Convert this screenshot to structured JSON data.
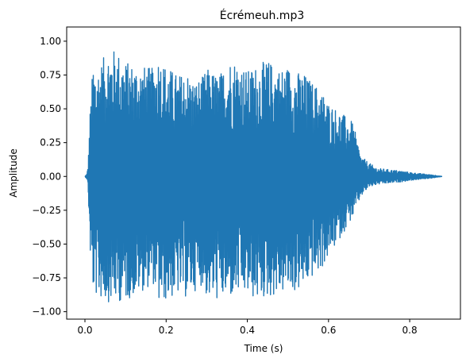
{
  "chart_data": {
    "type": "line",
    "title": "Écrémeuh.mp3",
    "xlabel": "Time (s)",
    "ylabel": "Amplitude",
    "xlim": [
      -0.045,
      0.925
    ],
    "ylim": [
      -1.055,
      1.105
    ],
    "xticks": [
      0.0,
      0.2,
      0.4,
      0.6,
      0.8
    ],
    "xtick_labels": [
      "0.0",
      "0.2",
      "0.4",
      "0.6",
      "0.8"
    ],
    "yticks": [
      -1.0,
      -0.75,
      -0.5,
      -0.25,
      0.0,
      0.25,
      0.5,
      0.75,
      1.0
    ],
    "ytick_labels": [
      "−1.00",
      "−0.75",
      "−0.50",
      "−0.25",
      "0.00",
      "0.25",
      "0.50",
      "0.75",
      "1.00"
    ],
    "grid": false,
    "series": [
      {
        "color": "#1f77b4",
        "x_start": 0.0,
        "x_end": 0.88,
        "envelope": {
          "x": [
            0.0,
            0.005,
            0.008,
            0.012,
            0.02,
            0.03,
            0.05,
            0.06,
            0.08,
            0.1,
            0.14,
            0.17,
            0.18,
            0.2,
            0.23,
            0.25,
            0.27,
            0.29,
            0.3,
            0.33,
            0.36,
            0.38,
            0.4,
            0.42,
            0.45,
            0.48,
            0.5,
            0.52,
            0.54,
            0.56,
            0.58,
            0.6,
            0.62,
            0.64,
            0.66,
            0.68,
            0.7,
            0.72,
            0.75,
            0.78,
            0.8,
            0.83,
            0.86,
            0.88
          ],
          "upper": [
            0.0,
            0.02,
            0.1,
            0.45,
            0.85,
            0.8,
            0.9,
            0.95,
            0.93,
            0.85,
            0.82,
            0.8,
            0.9,
            0.82,
            0.75,
            0.78,
            0.7,
            0.74,
            0.8,
            0.75,
            0.88,
            0.85,
            0.78,
            0.82,
            0.86,
            0.8,
            0.82,
            0.78,
            0.76,
            0.7,
            0.65,
            0.55,
            0.5,
            0.45,
            0.4,
            0.15,
            0.1,
            0.06,
            0.05,
            0.04,
            0.03,
            0.02,
            0.01,
            0.0
          ],
          "lower": [
            0.0,
            -0.02,
            -0.1,
            -0.55,
            -0.85,
            -0.9,
            -0.92,
            -0.93,
            -0.93,
            -0.92,
            -0.85,
            -0.8,
            -0.95,
            -0.92,
            -0.88,
            -0.9,
            -0.85,
            -0.8,
            -0.9,
            -0.92,
            -0.9,
            -0.88,
            -0.88,
            -0.92,
            -0.9,
            -0.87,
            -0.85,
            -0.86,
            -0.82,
            -0.75,
            -0.7,
            -0.6,
            -0.5,
            -0.4,
            -0.3,
            -0.15,
            -0.08,
            -0.06,
            -0.05,
            -0.04,
            -0.03,
            -0.02,
            -0.01,
            0.0
          ]
        }
      }
    ]
  }
}
